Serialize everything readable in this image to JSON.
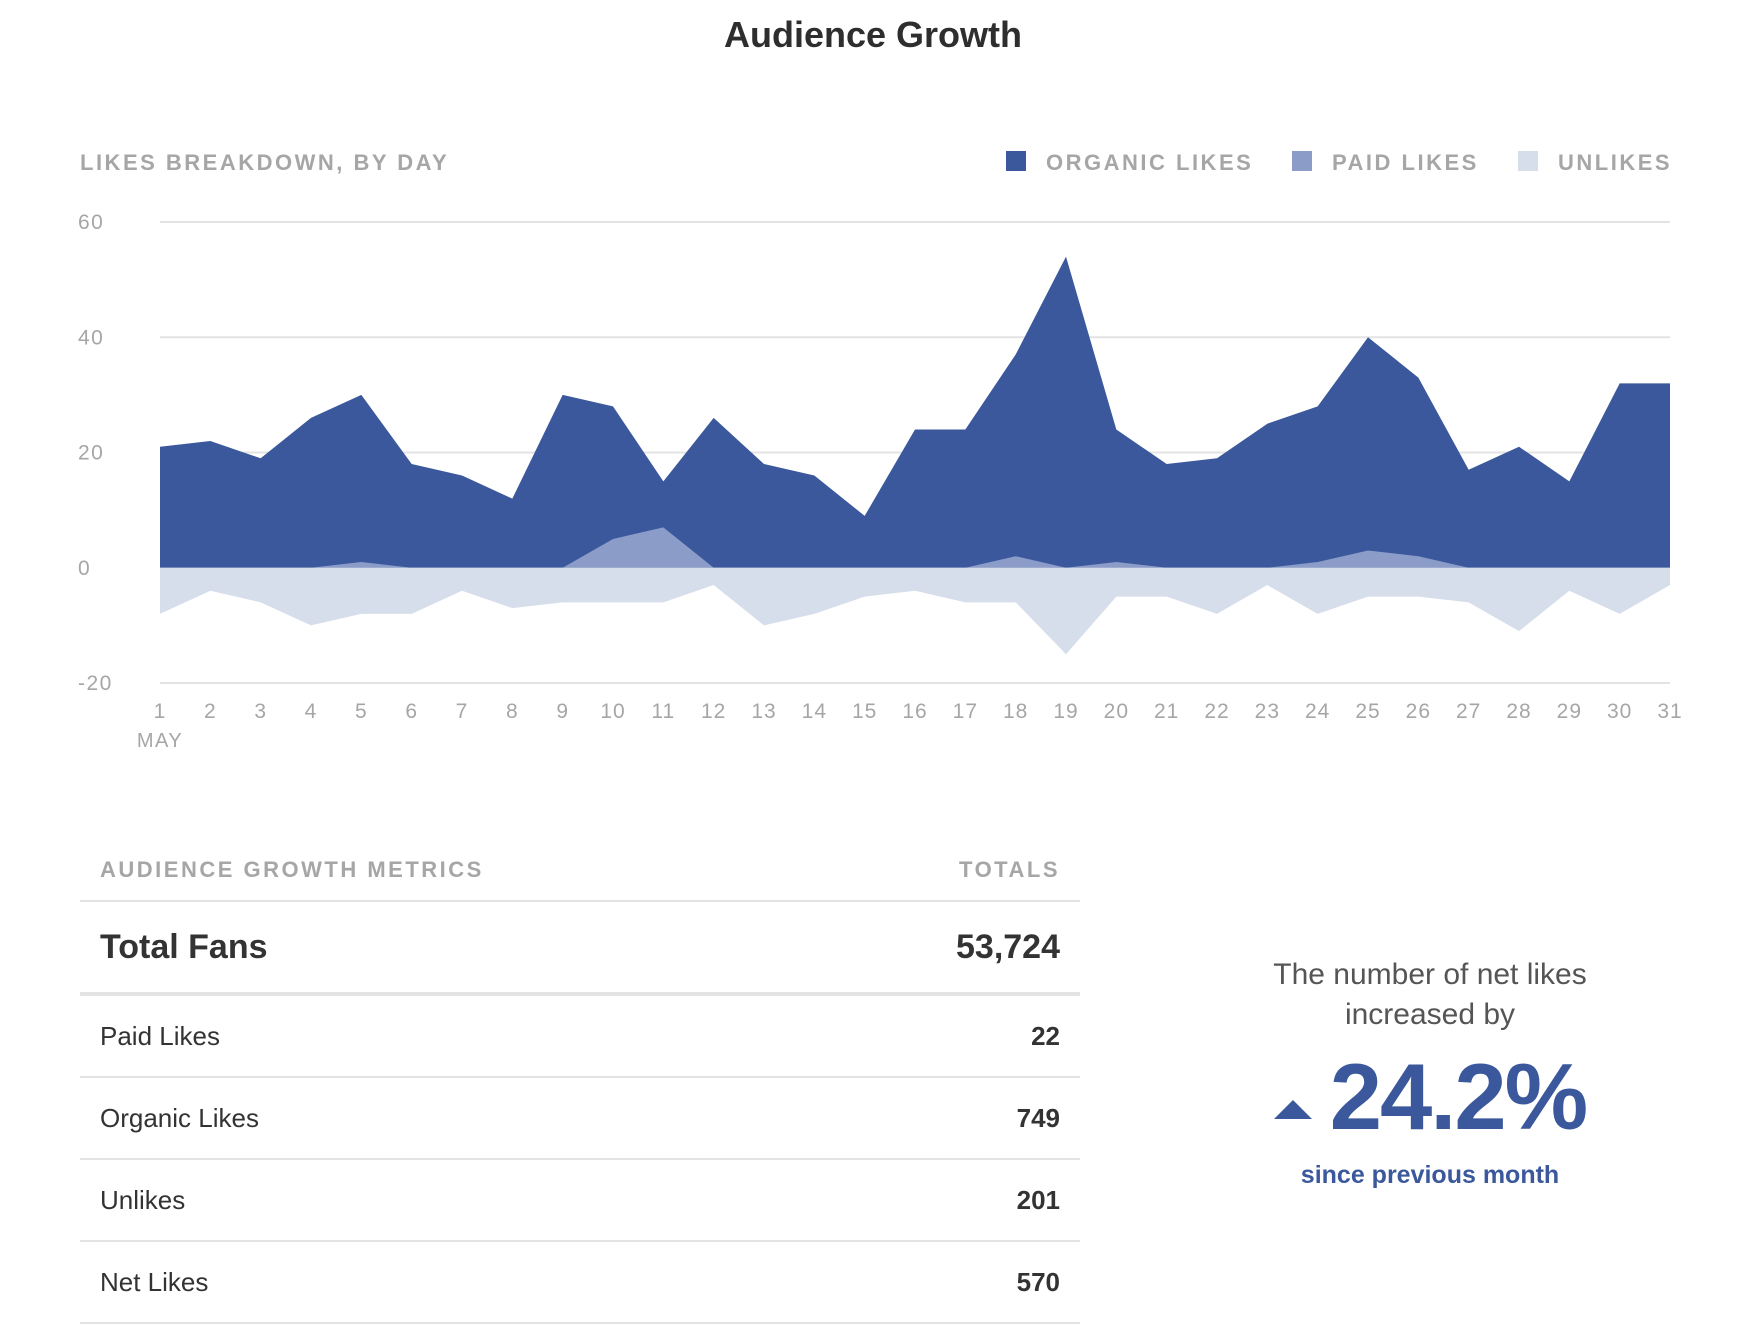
{
  "page_title": "Audience Growth",
  "chart_data": {
    "type": "area",
    "title": "LIKES BREAKDOWN, BY DAY",
    "x_month_label": "MAY",
    "categories": [
      "1",
      "2",
      "3",
      "4",
      "5",
      "6",
      "7",
      "8",
      "9",
      "10",
      "11",
      "12",
      "13",
      "14",
      "15",
      "16",
      "17",
      "18",
      "19",
      "20",
      "21",
      "22",
      "23",
      "24",
      "25",
      "26",
      "27",
      "28",
      "29",
      "30",
      "31"
    ],
    "ylim": [
      -20,
      60
    ],
    "yticks": [
      60,
      40,
      20,
      0,
      -20
    ],
    "grid": true,
    "legend_position": "top-right",
    "series": [
      {
        "name": "ORGANIC LIKES",
        "color": "#3a589b",
        "values": [
          21,
          22,
          19,
          26,
          30,
          18,
          16,
          12,
          30,
          28,
          15,
          26,
          18,
          16,
          9,
          24,
          24,
          37,
          54,
          24,
          18,
          19,
          25,
          28,
          40,
          33,
          17,
          21,
          15,
          32,
          32
        ]
      },
      {
        "name": "PAID LIKES",
        "color": "#8b9cc8",
        "values": [
          0,
          0,
          0,
          0,
          1,
          0,
          0,
          0,
          0,
          5,
          7,
          0,
          0,
          0,
          0,
          0,
          0,
          2,
          0,
          1,
          0,
          0,
          0,
          1,
          3,
          2,
          0,
          0,
          0,
          0,
          0
        ]
      },
      {
        "name": "UNLIKES",
        "color": "#d6deeb",
        "values": [
          -8,
          -4,
          -6,
          -10,
          -8,
          -8,
          -4,
          -7,
          -6,
          -6,
          -6,
          -3,
          -10,
          -8,
          -5,
          -4,
          -6,
          -6,
          -15,
          -5,
          -5,
          -8,
          -3,
          -8,
          -5,
          -5,
          -6,
          -11,
          -4,
          -8,
          -3
        ]
      }
    ]
  },
  "metrics": {
    "header_left": "AUDIENCE GROWTH METRICS",
    "header_right": "TOTALS",
    "total": {
      "label": "Total Fans",
      "value": "53,724"
    },
    "rows": [
      {
        "label": "Paid Likes",
        "value": "22"
      },
      {
        "label": "Organic Likes",
        "value": "749"
      },
      {
        "label": "Unlikes",
        "value": "201"
      },
      {
        "label": "Net Likes",
        "value": "570"
      }
    ]
  },
  "growth": {
    "text_line1": "The number of net likes",
    "text_line2": "increased by",
    "value": "24.2%",
    "caption": "since previous month",
    "icon": "triangle-up-icon"
  }
}
